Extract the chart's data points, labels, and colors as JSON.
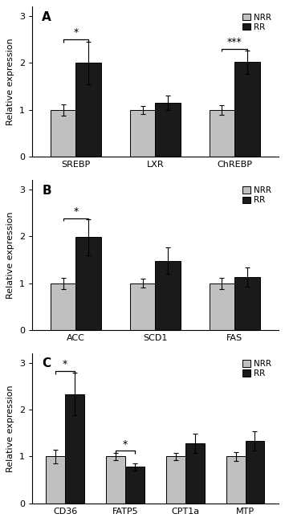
{
  "panels": [
    {
      "label": "A",
      "groups": [
        "SREBP",
        "LXR",
        "ChREBP"
      ],
      "nrr_values": [
        1.0,
        1.0,
        1.0
      ],
      "rr_values": [
        2.0,
        1.15,
        2.02
      ],
      "nrr_errors": [
        0.12,
        0.08,
        0.1
      ],
      "rr_errors": [
        0.45,
        0.15,
        0.25
      ],
      "significance": [
        {
          "group_idx": 0,
          "label": "*",
          "bar_height": 2.5
        },
        {
          "group_idx": 2,
          "label": "***",
          "bar_height": 2.3
        }
      ],
      "ylim": [
        0,
        3.2
      ],
      "yticks": [
        0,
        1,
        2,
        3
      ]
    },
    {
      "label": "B",
      "groups": [
        "ACC",
        "SCD1",
        "FAS"
      ],
      "nrr_values": [
        1.0,
        1.0,
        1.0
      ],
      "rr_values": [
        1.98,
        1.48,
        1.13
      ],
      "nrr_errors": [
        0.12,
        0.1,
        0.12
      ],
      "rr_errors": [
        0.38,
        0.28,
        0.2
      ],
      "significance": [
        {
          "group_idx": 0,
          "label": "*",
          "bar_height": 2.38
        }
      ],
      "ylim": [
        0,
        3.2
      ],
      "yticks": [
        0,
        1,
        2,
        3
      ]
    },
    {
      "label": "C",
      "groups": [
        "CD36",
        "FATP5",
        "CPT1a",
        "MTP"
      ],
      "nrr_values": [
        1.0,
        1.0,
        1.0,
        1.0
      ],
      "rr_values": [
        2.33,
        0.78,
        1.28,
        1.33
      ],
      "nrr_errors": [
        0.15,
        0.08,
        0.08,
        0.1
      ],
      "rr_errors": [
        0.45,
        0.08,
        0.2,
        0.2
      ],
      "significance": [
        {
          "group_idx": 0,
          "label": "*",
          "bar_height": 2.82
        },
        {
          "group_idx": 1,
          "label": "*",
          "bar_height": 1.12
        }
      ],
      "ylim": [
        0,
        3.2
      ],
      "yticks": [
        0,
        1,
        2,
        3
      ]
    }
  ],
  "nrr_color": "#c0c0c0",
  "rr_color": "#1a1a1a",
  "bar_width": 0.32,
  "ylabel": "Relative expression",
  "legend_labels": [
    "NRR",
    "RR"
  ],
  "figsize": [
    3.55,
    6.5
  ],
  "dpi": 100,
  "background_color": "#ffffff",
  "fontsize_label": 8,
  "fontsize_tick": 8,
  "fontsize_legend": 7.5,
  "fontsize_panel": 11,
  "fontsize_sig": 9
}
